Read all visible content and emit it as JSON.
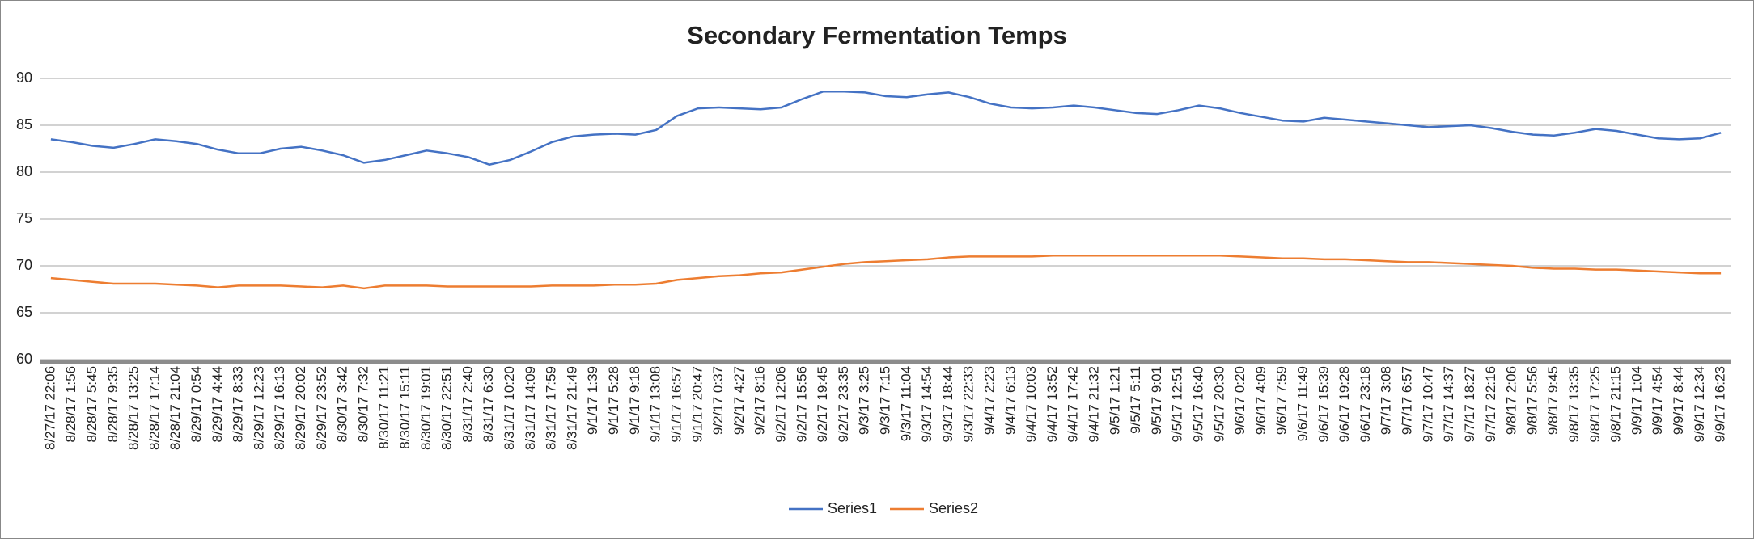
{
  "chart_data": {
    "type": "line",
    "title": "Secondary Fermentation Temps",
    "categories": [
      "8/27/17 22:06",
      "8/28/17 1:56",
      "8/28/17 5:45",
      "8/28/17 9:35",
      "8/28/17 13:25",
      "8/28/17 17:14",
      "8/28/17 21:04",
      "8/29/17 0:54",
      "8/29/17 4:44",
      "8/29/17 8:33",
      "8/29/17 12:23",
      "8/29/17 16:13",
      "8/29/17 20:02",
      "8/29/17 23:52",
      "8/30/17 3:42",
      "8/30/17 7:32",
      "8/30/17 11:21",
      "8/30/17 15:11",
      "8/30/17 19:01",
      "8/30/17 22:51",
      "8/31/17 2:40",
      "8/31/17 6:30",
      "8/31/17 10:20",
      "8/31/17 14:09",
      "8/31/17 17:59",
      "8/31/17 21:49",
      "9/1/17 1:39",
      "9/1/17 5:28",
      "9/1/17 9:18",
      "9/1/17 13:08",
      "9/1/17 16:57",
      "9/1/17 20:47",
      "9/2/17 0:37",
      "9/2/17 4:27",
      "9/2/17 8:16",
      "9/2/17 12:06",
      "9/2/17 15:56",
      "9/2/17 19:45",
      "9/2/17 23:35",
      "9/3/17 3:25",
      "9/3/17 7:15",
      "9/3/17 11:04",
      "9/3/17 14:54",
      "9/3/17 18:44",
      "9/3/17 22:33",
      "9/4/17 2:23",
      "9/4/17 6:13",
      "9/4/17 10:03",
      "9/4/17 13:52",
      "9/4/17 17:42",
      "9/4/17 21:32",
      "9/5/17 1:21",
      "9/5/17 5:11",
      "9/5/17 9:01",
      "9/5/17 12:51",
      "9/5/17 16:40",
      "9/5/17 20:30",
      "9/6/17 0:20",
      "9/6/17 4:09",
      "9/6/17 7:59",
      "9/6/17 11:49",
      "9/6/17 15:39",
      "9/6/17 19:28",
      "9/6/17 23:18",
      "9/7/17 3:08",
      "9/7/17 6:57",
      "9/7/17 10:47",
      "9/7/17 14:37",
      "9/7/17 18:27",
      "9/7/17 22:16",
      "9/8/17 2:06",
      "9/8/17 5:56",
      "9/8/17 9:45",
      "9/8/17 13:35",
      "9/8/17 17:25",
      "9/8/17 21:15",
      "9/9/17 1:04",
      "9/9/17 4:54",
      "9/9/17 8:44",
      "9/9/17 12:34",
      "9/9/17 16:23"
    ],
    "series": [
      {
        "name": "Series1",
        "color": "#4472c4",
        "values": [
          83.5,
          83.2,
          82.8,
          82.6,
          83.0,
          83.5,
          83.3,
          83.0,
          82.4,
          82.0,
          82.0,
          82.5,
          82.7,
          82.3,
          81.8,
          81.0,
          81.3,
          81.8,
          82.3,
          82.0,
          81.6,
          80.8,
          81.3,
          82.2,
          83.2,
          83.8,
          84.0,
          84.1,
          84.0,
          84.5,
          86.0,
          86.8,
          86.9,
          86.8,
          86.7,
          86.9,
          87.8,
          88.6,
          88.6,
          88.5,
          88.1,
          88.0,
          88.3,
          88.5,
          88.0,
          87.3,
          86.9,
          86.8,
          86.9,
          87.1,
          86.9,
          86.6,
          86.3,
          86.2,
          86.6,
          87.1,
          86.8,
          86.3,
          85.9,
          85.5,
          85.4,
          85.8,
          85.6,
          85.4,
          85.2,
          85.0,
          84.8,
          84.9,
          85.0,
          84.7,
          84.3,
          84.0,
          83.9,
          84.2,
          84.6,
          84.4,
          84.0,
          83.6,
          83.5,
          83.6,
          84.2
        ]
      },
      {
        "name": "Series2",
        "color": "#ed7d31",
        "values": [
          68.7,
          68.5,
          68.3,
          68.1,
          68.1,
          68.1,
          68.0,
          67.9,
          67.7,
          67.9,
          67.9,
          67.9,
          67.8,
          67.7,
          67.9,
          67.6,
          67.9,
          67.9,
          67.9,
          67.8,
          67.8,
          67.8,
          67.8,
          67.8,
          67.9,
          67.9,
          67.9,
          68.0,
          68.0,
          68.1,
          68.5,
          68.7,
          68.9,
          69.0,
          69.2,
          69.3,
          69.6,
          69.9,
          70.2,
          70.4,
          70.5,
          70.6,
          70.7,
          70.9,
          71.0,
          71.0,
          71.0,
          71.0,
          71.1,
          71.1,
          71.1,
          71.1,
          71.1,
          71.1,
          71.1,
          71.1,
          71.1,
          71.0,
          70.9,
          70.8,
          70.8,
          70.7,
          70.7,
          70.6,
          70.5,
          70.4,
          70.4,
          70.3,
          70.2,
          70.1,
          70.0,
          69.8,
          69.7,
          69.7,
          69.6,
          69.6,
          69.5,
          69.4,
          69.3,
          69.2,
          69.2
        ]
      }
    ],
    "ylim": [
      60,
      90
    ],
    "yticks": [
      60,
      65,
      70,
      75,
      80,
      85,
      90
    ],
    "grid": true,
    "legend": "bottom"
  }
}
